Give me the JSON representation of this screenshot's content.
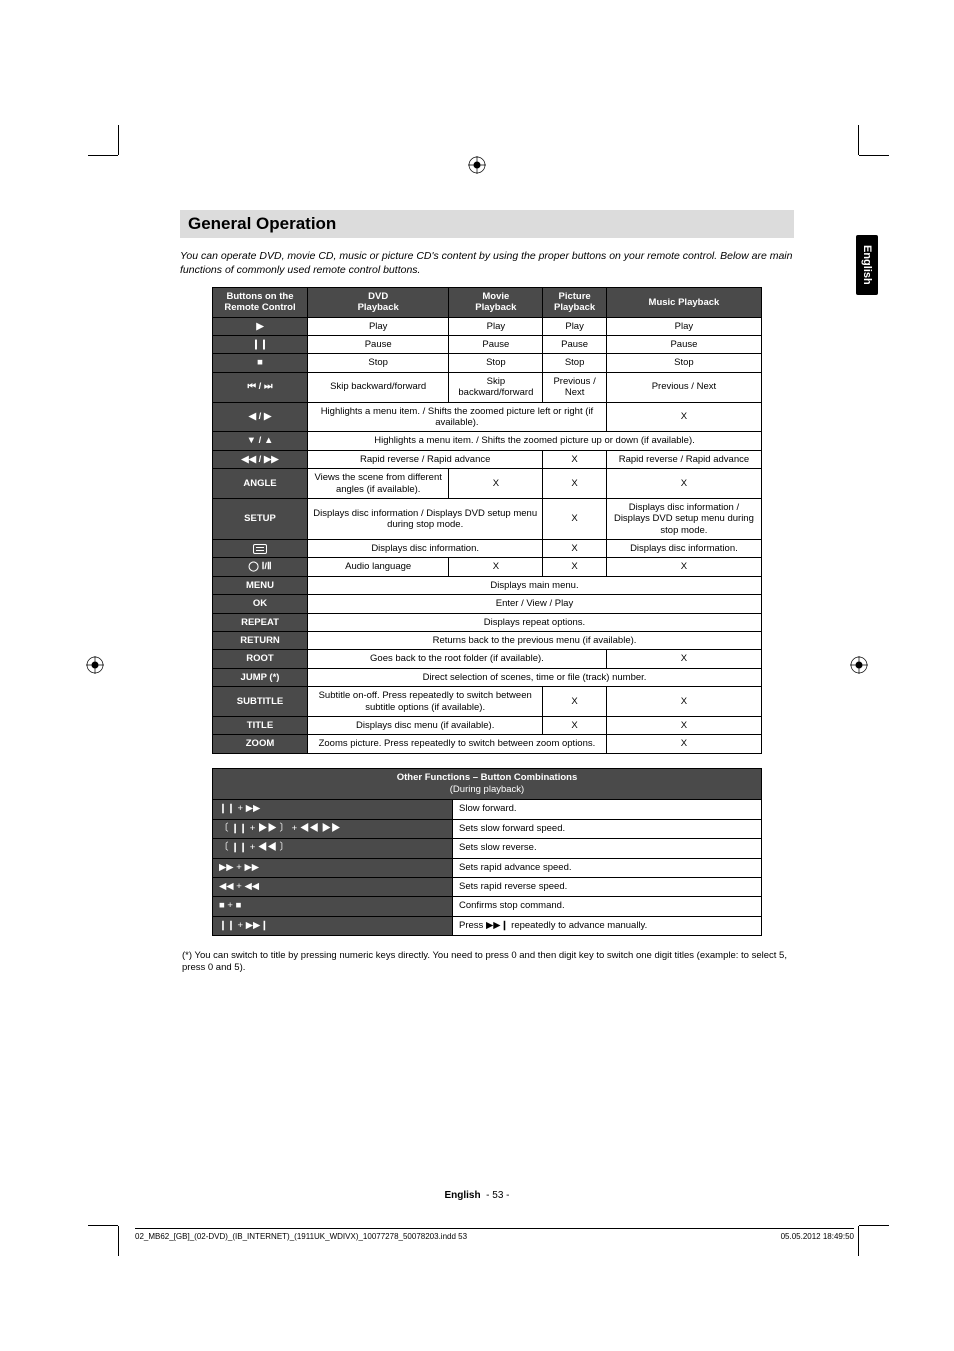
{
  "side_tab": "English",
  "heading": "General Operation",
  "intro": "You can operate DVD, movie CD, music or picture CD's content by using the proper buttons on your remote control. Below are main functions of commonly used remote control buttons.",
  "table1": {
    "headers": [
      "Buttons on the Remote Control",
      "DVD Playback",
      "Movie Playback",
      "Picture Playback",
      "Music Playback"
    ],
    "rows": [
      {
        "btn_sym": "▶",
        "cells": [
          "Play",
          "Play",
          "Play",
          "Play"
        ],
        "spans": [
          1,
          1,
          1,
          1
        ]
      },
      {
        "btn_sym": "❙❙",
        "cells": [
          "Pause",
          "Pause",
          "Pause",
          "Pause"
        ],
        "spans": [
          1,
          1,
          1,
          1
        ]
      },
      {
        "btn_sym": "■",
        "cells": [
          "Stop",
          "Stop",
          "Stop",
          "Stop"
        ],
        "spans": [
          1,
          1,
          1,
          1
        ]
      },
      {
        "btn_sym": "⏮ / ⏭",
        "cells": [
          "Skip backward/forward",
          "Skip backward/forward",
          "Previous / Next",
          "Previous / Next"
        ],
        "spans": [
          1,
          1,
          1,
          1
        ]
      },
      {
        "btn_sym": "◀ / ▶",
        "cells": [
          "Highlights a menu item. / Shifts the zoomed picture left or right (if available).",
          "X"
        ],
        "spans": [
          3,
          1
        ]
      },
      {
        "btn_sym": "▼ / ▲",
        "cells": [
          "Highlights a menu item. / Shifts the zoomed picture up or down (if available)."
        ],
        "spans": [
          4
        ]
      },
      {
        "btn_sym": "◀◀ / ▶▶",
        "cells": [
          "Rapid reverse / Rapid advance",
          "X",
          "Rapid reverse / Rapid advance"
        ],
        "spans": [
          2,
          1,
          1
        ]
      },
      {
        "btn_txt": "ANGLE",
        "cells": [
          "Views the scene from different angles (if available).",
          "X",
          "X",
          "X"
        ],
        "spans": [
          1,
          1,
          1,
          1
        ]
      },
      {
        "btn_txt": "SETUP",
        "cells": [
          "Displays disc information / Displays DVD setup menu during stop mode.",
          "X",
          "Displays disc information / Displays DVD setup menu during stop mode."
        ],
        "spans": [
          2,
          1,
          1
        ]
      },
      {
        "btn_icon": "sub",
        "cells": [
          "Displays disc information.",
          "X",
          "Displays disc information."
        ],
        "spans": [
          2,
          1,
          1
        ]
      },
      {
        "btn_sym": "◯ Ⅰ/Ⅱ",
        "cells": [
          "Audio language",
          "X",
          "X",
          "X"
        ],
        "spans": [
          1,
          1,
          1,
          1
        ]
      },
      {
        "btn_txt": "MENU",
        "cells": [
          "Displays main menu."
        ],
        "spans": [
          4
        ]
      },
      {
        "btn_txt": "OK",
        "cells": [
          "Enter / View / Play"
        ],
        "spans": [
          4
        ]
      },
      {
        "btn_txt": "REPEAT",
        "cells": [
          "Displays repeat options."
        ],
        "spans": [
          4
        ]
      },
      {
        "btn_txt": "RETURN",
        "cells": [
          "Returns back to the previous menu (if available)."
        ],
        "spans": [
          4
        ]
      },
      {
        "btn_txt": "ROOT",
        "cells": [
          "Goes back to the root folder (if available).",
          "X"
        ],
        "spans": [
          3,
          1
        ]
      },
      {
        "btn_txt": "JUMP (*)",
        "cells": [
          "Direct selection of scenes, time or file (track) number."
        ],
        "spans": [
          4
        ]
      },
      {
        "btn_txt": "SUBTITLE",
        "cells": [
          "Subtitle on-off. Press repeatedly to switch between subtitle options (if available).",
          "X",
          "X"
        ],
        "spans": [
          2,
          1,
          1
        ]
      },
      {
        "btn_txt": "TITLE",
        "cells": [
          "Displays disc menu (if available).",
          "X",
          "X"
        ],
        "spans": [
          2,
          1,
          1
        ]
      },
      {
        "btn_txt": "ZOOM",
        "cells": [
          "Zooms picture. Press repeatedly to switch between zoom options.",
          "X"
        ],
        "spans": [
          3,
          1
        ]
      }
    ]
  },
  "table2": {
    "header_line1": "Other Functions – Button Combinations",
    "header_line2": "(During playback)",
    "rows": [
      {
        "left": "❙❙  +  ▶▶",
        "right": "Slow forward."
      },
      {
        "left": "〔 ❙❙  +  ▶▶ 〕  +  ◀◀ ▶▶",
        "right": "Sets slow forward speed."
      },
      {
        "left": "〔 ❙❙  +  ◀◀ 〕",
        "right": "Sets slow reverse."
      },
      {
        "left": "▶▶ + ▶▶",
        "right": "Sets rapid advance speed."
      },
      {
        "left": "◀◀ + ◀◀",
        "right": "Sets rapid reverse speed."
      },
      {
        "left": "■ + ■",
        "right": "Confirms stop command."
      },
      {
        "left": "❙❙  +  ▶▶❙",
        "right": "Press ▶▶❙ repeatedly to advance manually."
      }
    ]
  },
  "footnote": "(*) You can switch to title by pressing numeric keys directly. You need to press 0 and then digit key to switch one digit titles (example: to select 5, press 0 and 5).",
  "pagenum_label": "English",
  "pagenum_num": "- 53 -",
  "footer_left": "02_MB62_[GB]_(02-DVD)_(IB_INTERNET)_(1911UK_WDIVX)_10077278_50078203.indd   53",
  "footer_right": "05.05.2012   18:49:50"
}
